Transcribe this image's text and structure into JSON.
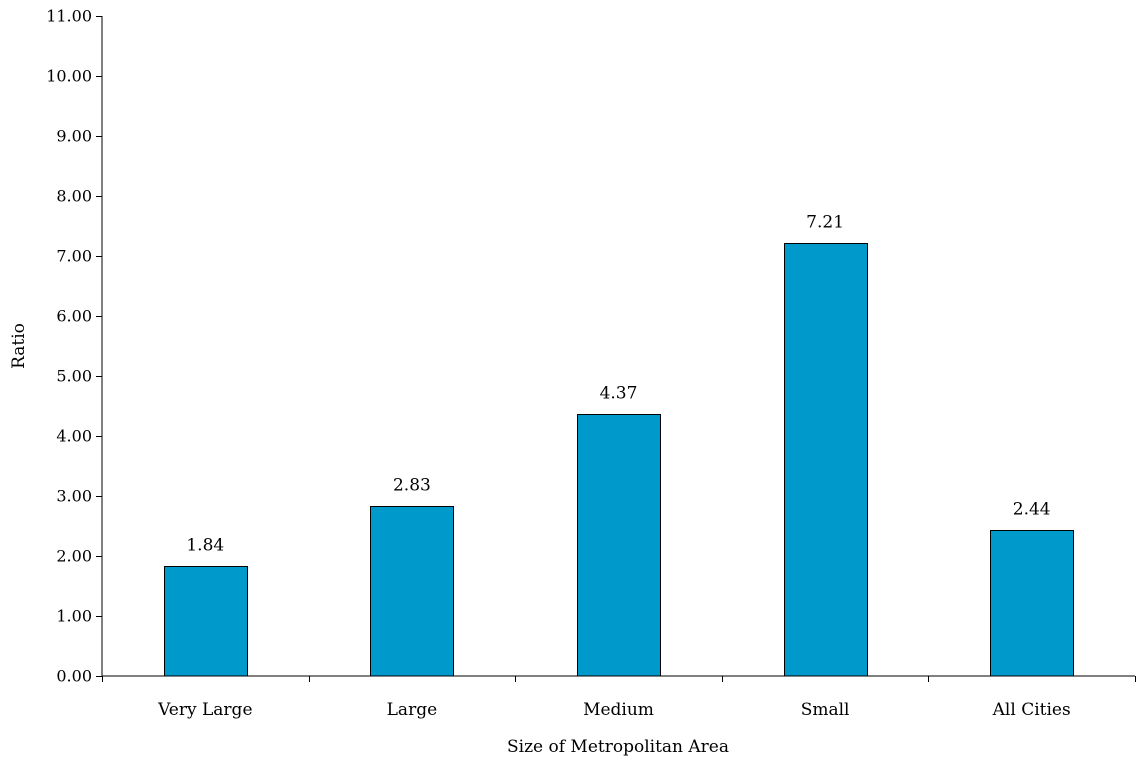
{
  "chart_data": {
    "type": "bar",
    "title": "",
    "xlabel": "Size of Metropolitan Area",
    "ylabel": "Ratio",
    "categories": [
      "Very Large",
      "Large",
      "Medium",
      "Small",
      "All Cities"
    ],
    "values": [
      1.84,
      2.83,
      4.37,
      7.21,
      2.44
    ],
    "data_labels": [
      "1.84",
      "2.83",
      "4.37",
      "7.21",
      "2.44"
    ],
    "ylim": [
      0,
      11
    ],
    "yticks": [
      "0.00",
      "1.00",
      "2.00",
      "3.00",
      "4.00",
      "5.00",
      "6.00",
      "7.00",
      "8.00",
      "9.00",
      "10.00",
      "11.00"
    ],
    "grid": false,
    "legend": "none",
    "bar_color": "#0099CC"
  }
}
